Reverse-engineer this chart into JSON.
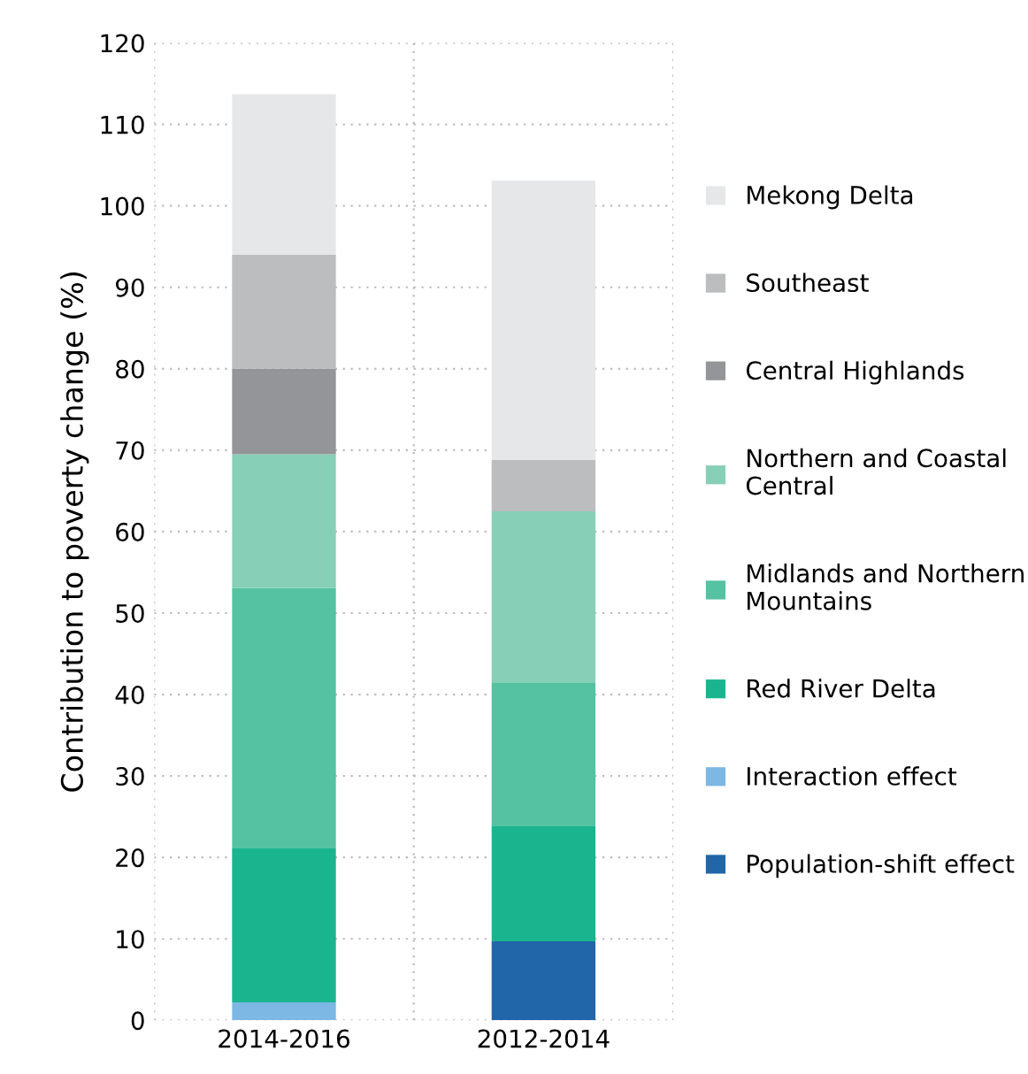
{
  "chart_data": {
    "type": "bar",
    "stacked": true,
    "ylabel": "Contribution to poverty change (%)",
    "categories": [
      "2014-2016",
      "2012-2014"
    ],
    "series": [
      {
        "name": "Population-shift effect",
        "color": "#2166a8",
        "values": [
          0,
          9.7
        ]
      },
      {
        "name": "Interaction effect",
        "color": "#7db7e3",
        "values": [
          2.2,
          0
        ]
      },
      {
        "name": "Red River Delta",
        "color": "#1ab58e",
        "values": [
          18.9,
          14.2
        ]
      },
      {
        "name": "Midlands and Northern\nMountains",
        "color": "#55c2a2",
        "values": [
          32.0,
          17.6
        ]
      },
      {
        "name": "Northern and Coastal\nCentral",
        "color": "#88cfb7",
        "values": [
          16.4,
          21.0
        ]
      },
      {
        "name": "Central Highlands",
        "color": "#939598",
        "values": [
          10.5,
          0
        ]
      },
      {
        "name": "Southeast",
        "color": "#bcbdbf",
        "values": [
          14.0,
          6.3
        ]
      },
      {
        "name": "Mekong Delta",
        "color": "#e6e7e8",
        "values": [
          19.7,
          34.3
        ]
      }
    ],
    "ylim": [
      0,
      120
    ],
    "yticks": [
      0,
      10,
      20,
      30,
      40,
      50,
      60,
      70,
      80,
      90,
      100,
      110,
      120
    ],
    "grid": true,
    "legend": "right"
  }
}
